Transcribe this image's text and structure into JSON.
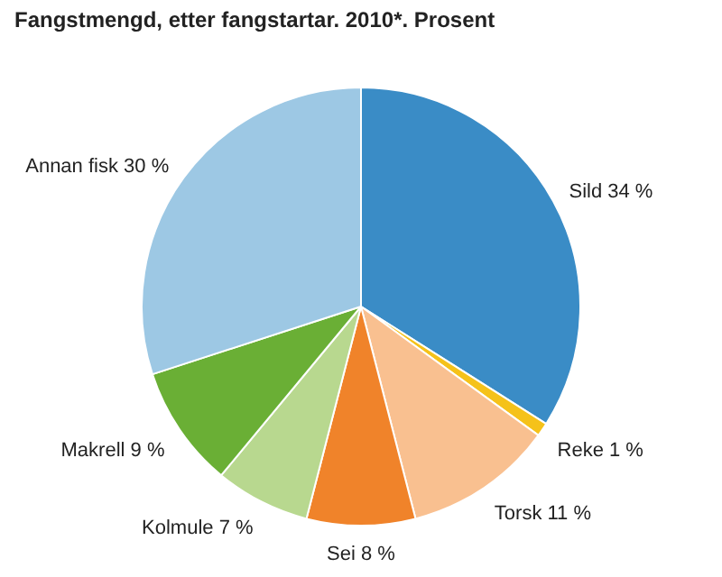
{
  "chart_data": {
    "type": "pie",
    "title": "Fangstmengd, etter fangstartar. 2010*. Prosent",
    "categories": [
      "Sild",
      "Reke",
      "Torsk",
      "Sei",
      "Kolmule",
      "Makrell",
      "Annan fisk"
    ],
    "values": [
      34,
      1,
      11,
      8,
      7,
      9,
      30
    ],
    "colors": [
      "#3a8cc6",
      "#f5c21a",
      "#f9c090",
      "#f0832a",
      "#b8d88f",
      "#6aaf35",
      "#9dc8e4"
    ],
    "value_labels": [
      "34 %",
      "1 %",
      "11 %",
      "8 %",
      "7 %",
      "9 %",
      "30 %"
    ]
  }
}
